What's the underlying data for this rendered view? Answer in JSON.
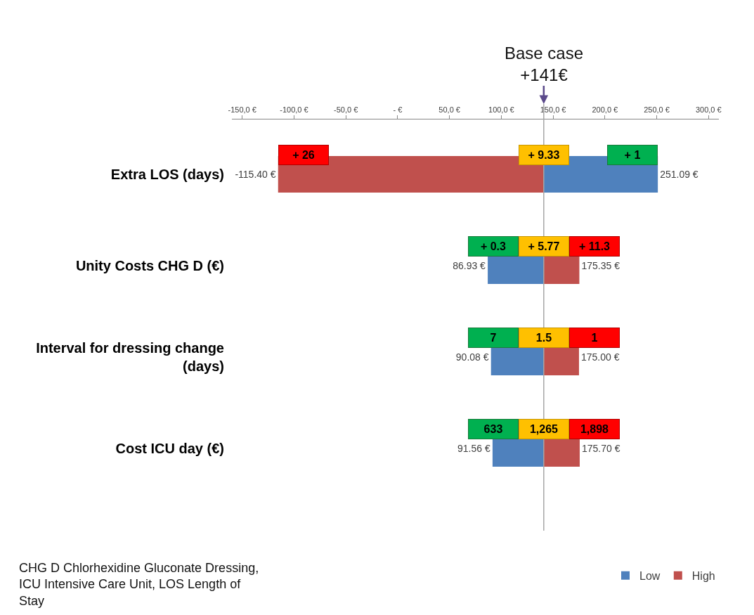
{
  "chart_data": {
    "type": "bar",
    "orientation": "horizontal",
    "categories": [
      "Extra LOS (days)",
      "Unity Costs CHG D (€)",
      "Interval for dressing change (days)",
      "Cost ICU day (€)"
    ],
    "series": [
      {
        "name": "Low",
        "color": "#4f81bd",
        "base": [
          141,
          141,
          141,
          141
        ],
        "values": [
          110.09,
          -54.07,
          -50.92,
          -49.44
        ],
        "value_labels": [
          "251.09 €",
          "86.93 €",
          "90.08 €",
          "91.56 €"
        ]
      },
      {
        "name": "High",
        "color": "#c0504d",
        "base": [
          141,
          141,
          141,
          141
        ],
        "values": [
          -256.4,
          34.35,
          34,
          34.7
        ],
        "value_labels": [
          "-115.40 €",
          "175.35 €",
          "175.00 €",
          "175.70 €"
        ]
      }
    ],
    "xlim": [
      -160,
      310
    ],
    "xticks": [
      {
        "value": -150,
        "label": "-150,0 €"
      },
      {
        "value": -100,
        "label": "-100,0 €"
      },
      {
        "value": -50,
        "label": "-50,0 €"
      },
      {
        "value": 0,
        "label": "- €"
      },
      {
        "value": 50,
        "label": "50,0 €"
      },
      {
        "value": 100,
        "label": "100,0 €"
      },
      {
        "value": 150,
        "label": "150,0 €"
      },
      {
        "value": 200,
        "label": "200,0 €"
      },
      {
        "value": 250,
        "label": "250,0 €"
      },
      {
        "value": 300,
        "label": "300,0 €"
      }
    ],
    "ref_lines": [
      {
        "axis": "x",
        "value": 141,
        "label": "Base case +141€",
        "color": "#a6a6a6"
      }
    ],
    "annotations": [
      "+ 26",
      "+ 9.33",
      "+ 1",
      "+ 0.3",
      "+ 5.77",
      "+ 11.3",
      "7",
      "1.5",
      "1",
      "633",
      "1,265",
      "1,898",
      "CHG D Chlorhexidine Gluconate Dressing, ICU Intensive Care Unit, LOS Length of Stay"
    ],
    "grid": false,
    "legend": "bottom right"
  }
}
